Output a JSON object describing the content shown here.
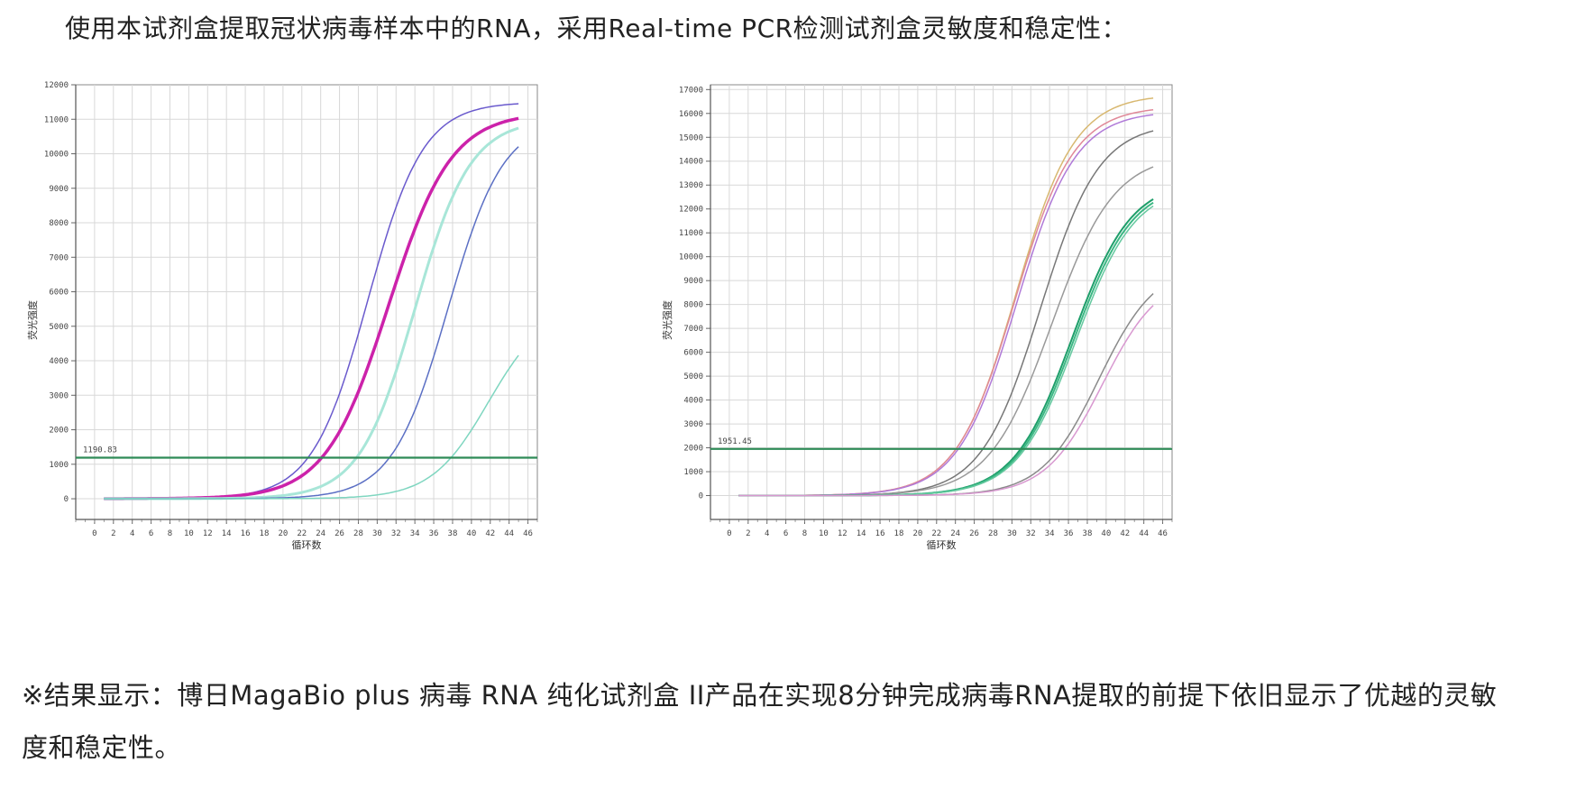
{
  "intro_text": "使用本试剂盒提取冠状病毒样本中的RNA，采用Real-time PCR检测试剂盒灵敏度和稳定性：",
  "conclusion_text": "※结果显示：博日MagaBio plus 病毒 RNA 纯化试剂盒 II产品在实现8分钟完成病毒RNA提取的前提下依旧显示了优越的灵敏度和稳定性。",
  "chart_data": [
    {
      "type": "line",
      "xlabel": "循环数",
      "ylabel": "荧光强度",
      "xlim": [
        -2,
        47
      ],
      "ylim": [
        -600,
        12000
      ],
      "xticks": [
        0,
        2,
        4,
        6,
        8,
        10,
        12,
        14,
        16,
        18,
        20,
        22,
        24,
        26,
        28,
        30,
        32,
        34,
        36,
        38,
        40,
        42,
        44,
        46
      ],
      "yticks": [
        0,
        1000,
        2000,
        3000,
        4000,
        5000,
        6000,
        7000,
        8000,
        9000,
        10000,
        11000,
        12000
      ],
      "grid": true,
      "threshold": {
        "value": 1190.83,
        "label": "1190.83",
        "color": "#2e8b57"
      },
      "series": [
        {
          "color": "#6a5acd",
          "width": 1.5,
          "ct": 25.2,
          "midpoint": 29.0,
          "steepness": 0.34,
          "plateau": 11500
        },
        {
          "color": "#cc22aa",
          "width": 3.5,
          "ct": 26.2,
          "midpoint": 31.2,
          "steepness": 0.3,
          "plateau": 11200
        },
        {
          "color": "#a8e6d8",
          "width": 3.0,
          "ct": 28.2,
          "midpoint": 34.0,
          "steepness": 0.34,
          "plateau": 11000
        },
        {
          "color": "#5b6fc4",
          "width": 1.5,
          "ct": 31.6,
          "midpoint": 37.5,
          "steepness": 0.34,
          "plateau": 11000
        },
        {
          "color": "#7fd6c0",
          "width": 1.5,
          "ct": 35.4,
          "midpoint": 41.8,
          "steepness": 0.33,
          "plateau": 5600
        }
      ]
    },
    {
      "type": "line",
      "xlabel": "循环数",
      "ylabel": "荧光强度",
      "xlim": [
        -2,
        47
      ],
      "ylim": [
        -1000,
        17200
      ],
      "xticks": [
        0,
        2,
        4,
        6,
        8,
        10,
        12,
        14,
        16,
        18,
        20,
        22,
        24,
        26,
        28,
        30,
        32,
        34,
        36,
        38,
        40,
        42,
        44,
        46
      ],
      "yticks": [
        0,
        1000,
        2000,
        3000,
        4000,
        5000,
        6000,
        7000,
        8000,
        9000,
        10000,
        11000,
        12000,
        13000,
        14000,
        15000,
        16000,
        17000
      ],
      "grid": true,
      "threshold": {
        "value": 1951.45,
        "label": "1951.45",
        "color": "#2e8b57"
      },
      "series": [
        {
          "color": "#d8b870",
          "width": 1.5,
          "ct": 26.8,
          "midpoint": 30.4,
          "steepness": 0.32,
          "plateau": 16800
        },
        {
          "color": "#e08898",
          "width": 1.5,
          "ct": 26.7,
          "midpoint": 30.3,
          "steepness": 0.32,
          "plateau": 16300
        },
        {
          "color": "#b07ad8",
          "width": 1.5,
          "ct": 26.8,
          "midpoint": 30.5,
          "steepness": 0.32,
          "plateau": 16100
        },
        {
          "color": "#777777",
          "width": 1.5,
          "ct": 29.5,
          "midpoint": 33.0,
          "steepness": 0.32,
          "plateau": 15600
        },
        {
          "color": "#999999",
          "width": 1.5,
          "ct": 30.1,
          "midpoint": 34.2,
          "steepness": 0.3,
          "plateau": 14300
        },
        {
          "color": "#1e9e6a",
          "width": 2.0,
          "ct": 32.9,
          "midpoint": 36.4,
          "steepness": 0.32,
          "plateau": 13200
        },
        {
          "color": "#3cb884",
          "width": 2.0,
          "ct": 33.2,
          "midpoint": 36.6,
          "steepness": 0.32,
          "plateau": 13100
        },
        {
          "color": "#66c9a0",
          "width": 1.5,
          "ct": 33.4,
          "midpoint": 36.8,
          "steepness": 0.32,
          "plateau": 13000
        },
        {
          "color": "#8a8a8a",
          "width": 1.5,
          "ct": 36.0,
          "midpoint": 39.2,
          "steepness": 0.33,
          "plateau": 9700
        },
        {
          "color": "#d898d0",
          "width": 1.5,
          "ct": 36.5,
          "midpoint": 39.6,
          "steepness": 0.33,
          "plateau": 9300
        }
      ]
    }
  ]
}
